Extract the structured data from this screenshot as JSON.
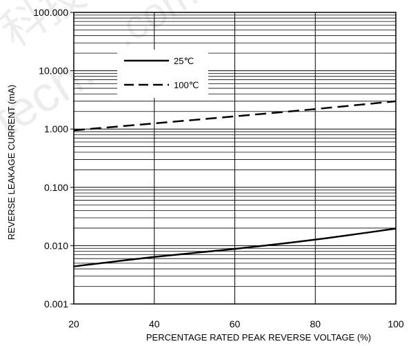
{
  "chart_data": {
    "type": "line",
    "xlabel": "PERCENTAGE RATED PEAK REVERSE VOLTAGE (%)",
    "ylabel": "REVERSE LEAKAGE CURRENT (mA)",
    "x_ticks": [
      "20",
      "40",
      "60",
      "80",
      "100"
    ],
    "y_ticks": [
      "0.001",
      "0.010",
      "0.100",
      "1.000",
      "10.000",
      "100.000"
    ],
    "xlim": [
      20,
      100
    ],
    "ylim": [
      0.001,
      100
    ],
    "yscale": "log",
    "grid": true,
    "legend": "top-left",
    "series": [
      {
        "name": "25℃",
        "style": "solid",
        "x": [
          20,
          40,
          60,
          80,
          100
        ],
        "y": [
          0.0044,
          0.0064,
          0.0088,
          0.0127,
          0.0196
        ]
      },
      {
        "name": "100℃",
        "style": "dashed",
        "x": [
          20,
          40,
          60,
          80,
          100
        ],
        "y": [
          0.95,
          1.25,
          1.65,
          2.2,
          3.0
        ]
      }
    ]
  },
  "watermark": [
    "科技",
    ".com",
    "tech."
  ]
}
